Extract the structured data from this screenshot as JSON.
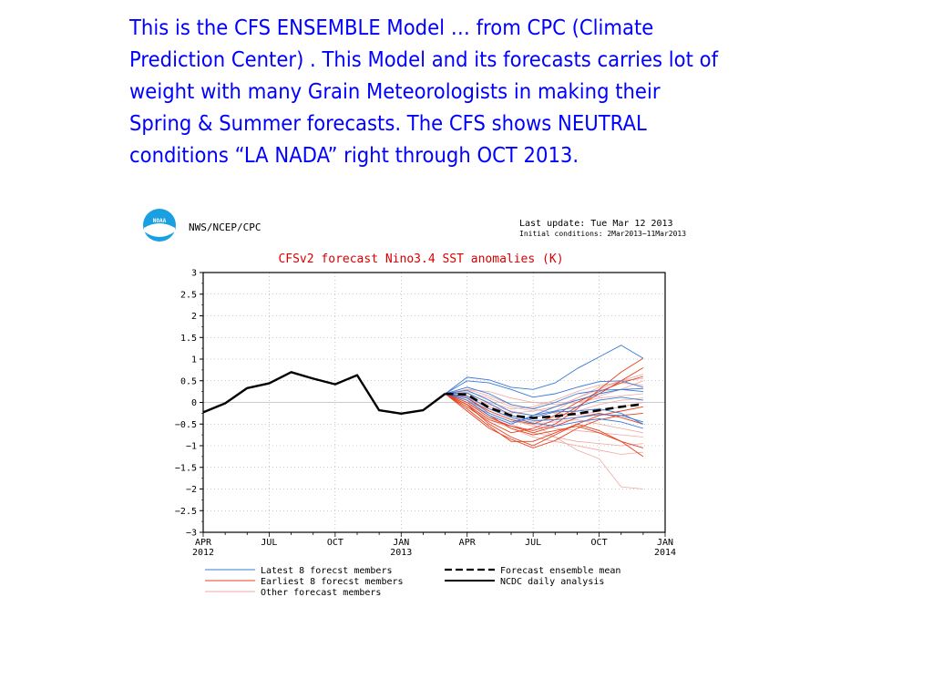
{
  "headline": "This is the CFS   ENSEMBLE Model … from    CPC  (Climate\nPrediction Center) . This    Model and its forecasts carries  lot of\nweight  with many  Grain Meteorologists   in making their\nSpring & Summer forecasts.   The CFS  shows  NEUTRAL\nconditions   “LA  NADA”   right through  OCT  2013.",
  "figure": {
    "agency": "NWS/NCEP/CPC",
    "logo_text": "NOAA",
    "last_update": "Last update: Tue Mar 12 2013",
    "initial_conditions": "Initial conditions: 2Mar2013−11Mar2013"
  },
  "colors": {
    "headline": "#0000ff",
    "title": "#d80000",
    "latest": "#3a78d6",
    "earliest": "#e8401e",
    "other": "#f0a8a0",
    "analysis": "#000000"
  },
  "chart_data": {
    "type": "line",
    "title": "CFSv2 forecast Nino3.4 SST anomalies (K)",
    "ylim": [
      -3,
      3
    ],
    "xlim": [
      0,
      21
    ],
    "y_ticks": [
      3,
      2.5,
      2,
      1.5,
      1,
      0.5,
      0,
      -0.5,
      -1,
      -1.5,
      -2,
      -2.5,
      -3
    ],
    "y_tick_labels": [
      "3",
      "2.5",
      "2",
      "1.5",
      "1",
      "0.5",
      "0",
      "−0.5",
      "−1",
      "−1.5",
      "−2",
      "−2.5",
      "−3"
    ],
    "x_ticks": [
      {
        "pos": 0,
        "month": "APR",
        "year": "2012"
      },
      {
        "pos": 3,
        "month": "JUL",
        "year": ""
      },
      {
        "pos": 6,
        "month": "OCT",
        "year": ""
      },
      {
        "pos": 9,
        "month": "JAN",
        "year": "2013"
      },
      {
        "pos": 12,
        "month": "APR",
        "year": ""
      },
      {
        "pos": 15,
        "month": "JUL",
        "year": ""
      },
      {
        "pos": 18,
        "month": "OCT",
        "year": ""
      },
      {
        "pos": 21,
        "month": "JAN",
        "year": "2014"
      }
    ],
    "grid": true,
    "legend": [
      {
        "key": "latest",
        "label": "Latest 8 forecst members"
      },
      {
        "key": "earliest",
        "label": "Earliest 8 forecst members"
      },
      {
        "key": "other",
        "label": "Other forecast members"
      },
      {
        "key": "mean",
        "label": "Forecast ensemble mean"
      },
      {
        "key": "analysis",
        "label": "NCDC daily analysis"
      }
    ],
    "analysis": {
      "x": [
        0,
        1,
        2,
        3,
        4,
        5,
        6,
        7,
        8,
        9,
        10,
        11
      ],
      "y": [
        -0.23,
        -0.02,
        0.33,
        0.44,
        0.7,
        0.55,
        0.42,
        0.63,
        -0.18,
        -0.26,
        -0.18,
        0.2
      ]
    },
    "ensemble_mean": {
      "x": [
        11,
        12,
        13,
        14,
        15,
        16,
        17,
        18,
        19,
        20
      ],
      "y": [
        0.2,
        0.18,
        -0.12,
        -0.3,
        -0.36,
        -0.32,
        -0.26,
        -0.18,
        -0.1,
        -0.04
      ]
    },
    "members_x": [
      11,
      12,
      13,
      14,
      15,
      16,
      17,
      18,
      19,
      20
    ],
    "latest_members": [
      [
        0.2,
        0.58,
        0.52,
        0.35,
        0.3,
        0.45,
        0.78,
        1.05,
        1.32,
        1.02
      ],
      [
        0.2,
        0.5,
        0.45,
        0.3,
        0.12,
        0.2,
        0.35,
        0.48,
        0.5,
        0.35
      ],
      [
        0.2,
        0.35,
        0.2,
        -0.05,
        -0.15,
        0.0,
        0.2,
        0.28,
        0.3,
        0.25
      ],
      [
        0.2,
        0.28,
        0.05,
        -0.22,
        -0.3,
        -0.2,
        -0.1,
        0.05,
        0.12,
        0.05
      ],
      [
        0.2,
        0.22,
        -0.02,
        -0.3,
        -0.42,
        -0.4,
        -0.35,
        -0.28,
        -0.3,
        -0.45
      ],
      [
        0.2,
        0.15,
        -0.15,
        -0.35,
        -0.48,
        -0.55,
        -0.45,
        -0.38,
        -0.45,
        -0.6
      ],
      [
        0.2,
        0.1,
        -0.25,
        -0.45,
        -0.35,
        -0.22,
        -0.2,
        -0.15,
        -0.25,
        -0.5
      ],
      [
        0.2,
        0.05,
        -0.3,
        -0.5,
        -0.3,
        -0.1,
        0.05,
        0.2,
        0.3,
        0.32
      ]
    ],
    "earliest_members": [
      [
        0.2,
        -0.05,
        -0.5,
        -0.8,
        -1.0,
        -0.75,
        -0.5,
        -0.3,
        -0.2,
        -0.1
      ],
      [
        0.2,
        -0.2,
        -0.6,
        -0.85,
        -1.05,
        -0.88,
        -0.6,
        -0.4,
        -0.3,
        -0.25
      ],
      [
        0.2,
        0.0,
        -0.35,
        -0.55,
        -0.65,
        -0.5,
        -0.15,
        0.3,
        0.7,
        1.02
      ],
      [
        0.2,
        -0.1,
        -0.45,
        -0.7,
        -0.6,
        -0.4,
        -0.1,
        0.2,
        0.5,
        0.8
      ],
      [
        0.2,
        -0.15,
        -0.55,
        -0.9,
        -0.9,
        -0.7,
        -0.5,
        -0.65,
        -0.9,
        -1.25
      ],
      [
        0.2,
        0.05,
        -0.3,
        -0.6,
        -0.75,
        -0.65,
        -0.55,
        -0.7,
        -0.9,
        -1.05
      ],
      [
        0.2,
        -0.05,
        -0.4,
        -0.55,
        -0.7,
        -0.55,
        -0.35,
        -0.25,
        -0.35,
        -0.5
      ],
      [
        0.2,
        0.1,
        -0.2,
        -0.4,
        -0.5,
        -0.3,
        0.0,
        0.25,
        0.45,
        0.6
      ]
    ],
    "other_members": [
      [
        0.2,
        0.1,
        -0.1,
        -0.3,
        -0.5,
        -0.8,
        -1.1,
        -1.3,
        -1.95,
        -2.0
      ],
      [
        0.2,
        0.15,
        -0.05,
        -0.2,
        -0.3,
        -0.2,
        0.1,
        0.3,
        0.5,
        0.65
      ],
      [
        0.2,
        0.25,
        0.1,
        -0.1,
        -0.2,
        -0.1,
        0.05,
        0.15,
        0.3,
        0.5
      ],
      [
        0.2,
        0.0,
        -0.3,
        -0.5,
        -0.7,
        -0.8,
        -0.9,
        -0.95,
        -1.0,
        -0.95
      ],
      [
        0.2,
        0.3,
        0.25,
        0.1,
        0.0,
        -0.05,
        0.0,
        0.1,
        0.15,
        0.2
      ],
      [
        0.2,
        -0.05,
        -0.25,
        -0.45,
        -0.5,
        -0.45,
        -0.4,
        -0.5,
        -0.6,
        -0.7
      ],
      [
        0.2,
        0.12,
        -0.1,
        -0.25,
        -0.2,
        -0.1,
        0.1,
        0.35,
        0.5,
        0.55
      ],
      [
        0.2,
        0.05,
        -0.2,
        -0.4,
        -0.55,
        -0.6,
        -0.65,
        -0.7,
        -0.75,
        -0.8
      ],
      [
        0.2,
        0.2,
        0.0,
        -0.15,
        -0.1,
        0.05,
        0.25,
        0.4,
        0.45,
        0.4
      ],
      [
        0.2,
        -0.1,
        -0.4,
        -0.6,
        -0.8,
        -0.9,
        -1.0,
        -1.1,
        -1.2,
        -1.15
      ],
      [
        0.2,
        0.3,
        0.15,
        -0.05,
        -0.15,
        -0.25,
        -0.3,
        -0.2,
        -0.1,
        0.0
      ],
      [
        0.2,
        0.0,
        -0.15,
        -0.35,
        -0.45,
        -0.35,
        -0.2,
        -0.05,
        0.05,
        0.1
      ]
    ]
  }
}
